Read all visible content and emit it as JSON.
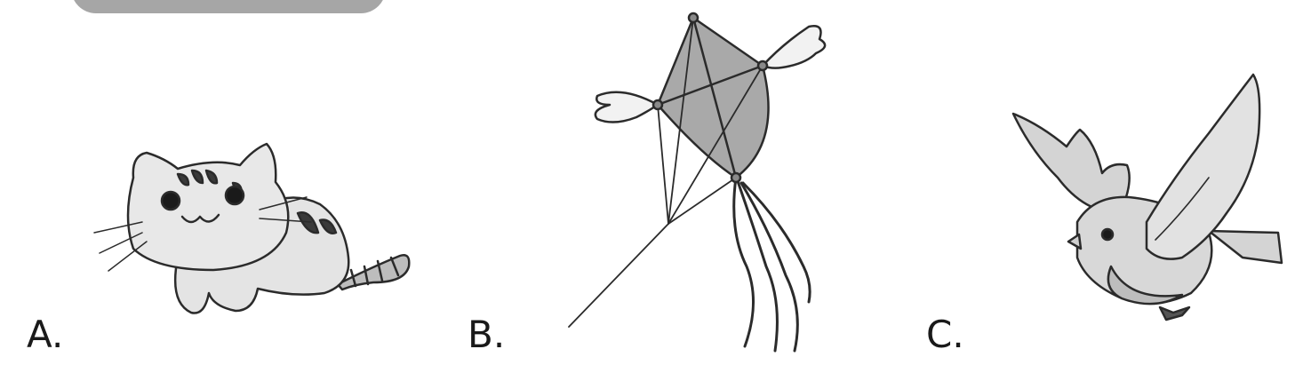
{
  "options": [
    {
      "letter": "A.",
      "icon": "cat-icon"
    },
    {
      "letter": "B.",
      "icon": "winged-kite-icon"
    },
    {
      "letter": "C.",
      "icon": "bird-icon"
    }
  ],
  "colors": {
    "tab": "#a6a6a6",
    "fill_light": "#e2e2e2",
    "fill_mid": "#c3c3c3",
    "fill_dark": "#9a9a9a",
    "stroke": "#2b2b2b"
  }
}
